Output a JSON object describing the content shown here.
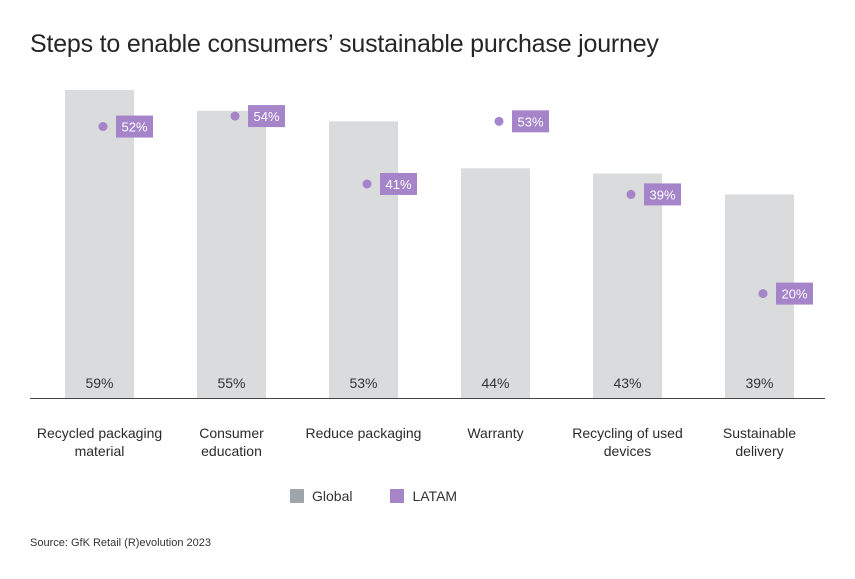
{
  "title": "Steps to enable consumers’ sustainable purchase journey",
  "source": "Source: GfK Retail (R)evolution 2023",
  "legend": [
    {
      "label": "Global",
      "color": "#a0a5a9"
    },
    {
      "label": "LATAM",
      "color": "#a584c9"
    }
  ],
  "colors": {
    "bar": "#d9dbdd",
    "dot": "#a584c9",
    "label_box": "#a584c9",
    "label_text": "#ffffff",
    "axis": "#444444"
  },
  "chart_data": {
    "type": "bar",
    "categories": [
      [
        "Recycled packaging",
        "material"
      ],
      [
        "Consumer",
        "education"
      ],
      [
        "Reduce packaging"
      ],
      [
        "Warranty"
      ],
      [
        "Recycling of used",
        "devices"
      ],
      [
        "Sustainable",
        "delivery"
      ]
    ],
    "series": [
      {
        "name": "Global",
        "type": "bar",
        "values": [
          59,
          55,
          53,
          44,
          43,
          39
        ],
        "labels": [
          "59%",
          "55%",
          "53%",
          "44%",
          "43%",
          "39%"
        ]
      },
      {
        "name": "LATAM",
        "type": "dot",
        "values": [
          52,
          54,
          41,
          53,
          39,
          20
        ],
        "labels": [
          "52%",
          "54%",
          "41%",
          "53%",
          "39%",
          "20%"
        ]
      }
    ],
    "ylim": [
      0,
      59
    ],
    "legend_position": "bottom",
    "grid": false
  }
}
